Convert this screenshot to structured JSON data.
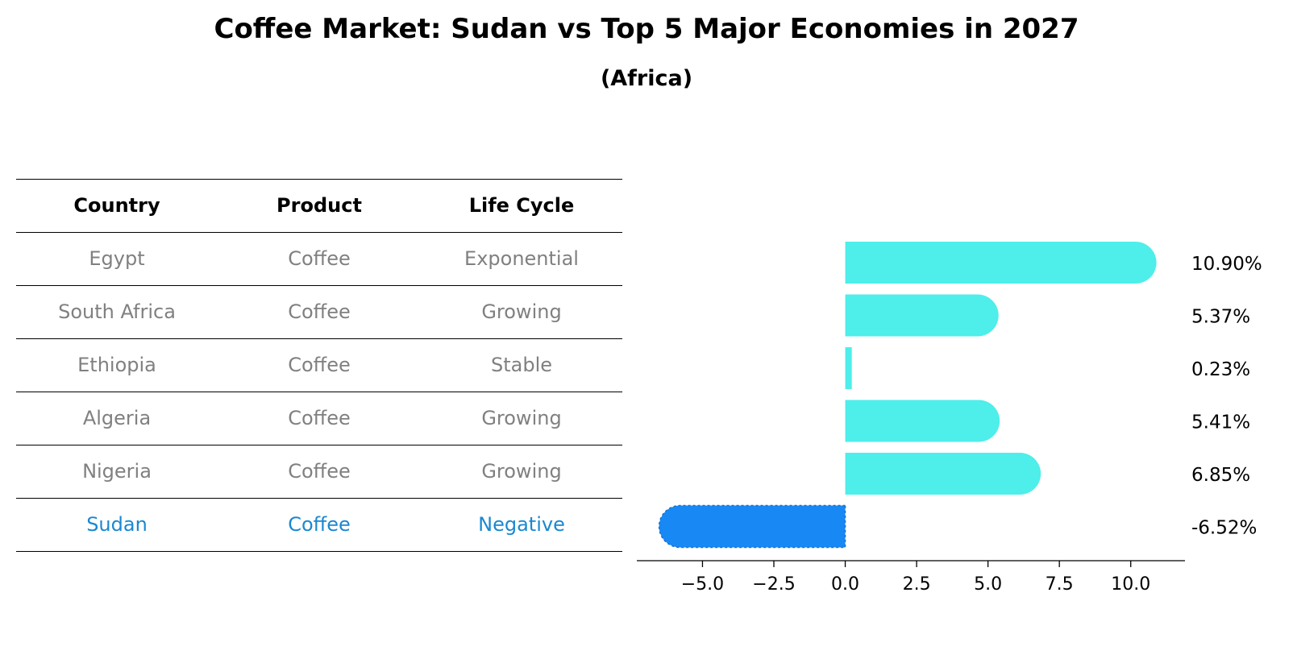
{
  "title": "Coffee Market: Sudan vs Top 5 Major Economies in 2027",
  "subtitle": "(Africa)",
  "table": {
    "headers": [
      "Country",
      "Product",
      "Life Cycle"
    ],
    "rows": [
      {
        "country": "Egypt",
        "product": "Coffee",
        "life_cycle": "Exponential",
        "highlight": false
      },
      {
        "country": "South Africa",
        "product": "Coffee",
        "life_cycle": "Growing",
        "highlight": false
      },
      {
        "country": "Ethiopia",
        "product": "Coffee",
        "life_cycle": "Stable",
        "highlight": false
      },
      {
        "country": "Algeria",
        "product": "Coffee",
        "life_cycle": "Growing",
        "highlight": false
      },
      {
        "country": "Nigeria",
        "product": "Coffee",
        "life_cycle": "Growing",
        "highlight": false
      },
      {
        "country": "Sudan",
        "product": "Coffee",
        "life_cycle": "Negative",
        "highlight": true
      }
    ]
  },
  "chart_data": {
    "type": "bar",
    "orientation": "horizontal",
    "categories": [
      "Egypt",
      "South Africa",
      "Ethiopia",
      "Algeria",
      "Nigeria",
      "Sudan"
    ],
    "values": [
      10.9,
      5.37,
      0.23,
      5.41,
      6.85,
      -6.52
    ],
    "value_labels": [
      "10.90%",
      "5.37%",
      "0.23%",
      "5.41%",
      "6.85%",
      "-6.52%"
    ],
    "xlim": [
      -7.3,
      11.9
    ],
    "xticks": [
      -5.0,
      -2.5,
      0.0,
      2.5,
      5.0,
      7.5,
      10.0
    ],
    "xtick_labels": [
      "−5.0",
      "−2.5",
      "0.0",
      "2.5",
      "5.0",
      "7.5",
      "10.0"
    ],
    "grid": false,
    "colors": {
      "positive": "#4eeeea",
      "negative": "#1888f5",
      "highlight_text": "#1a88d0",
      "muted_text": "#808080"
    }
  }
}
